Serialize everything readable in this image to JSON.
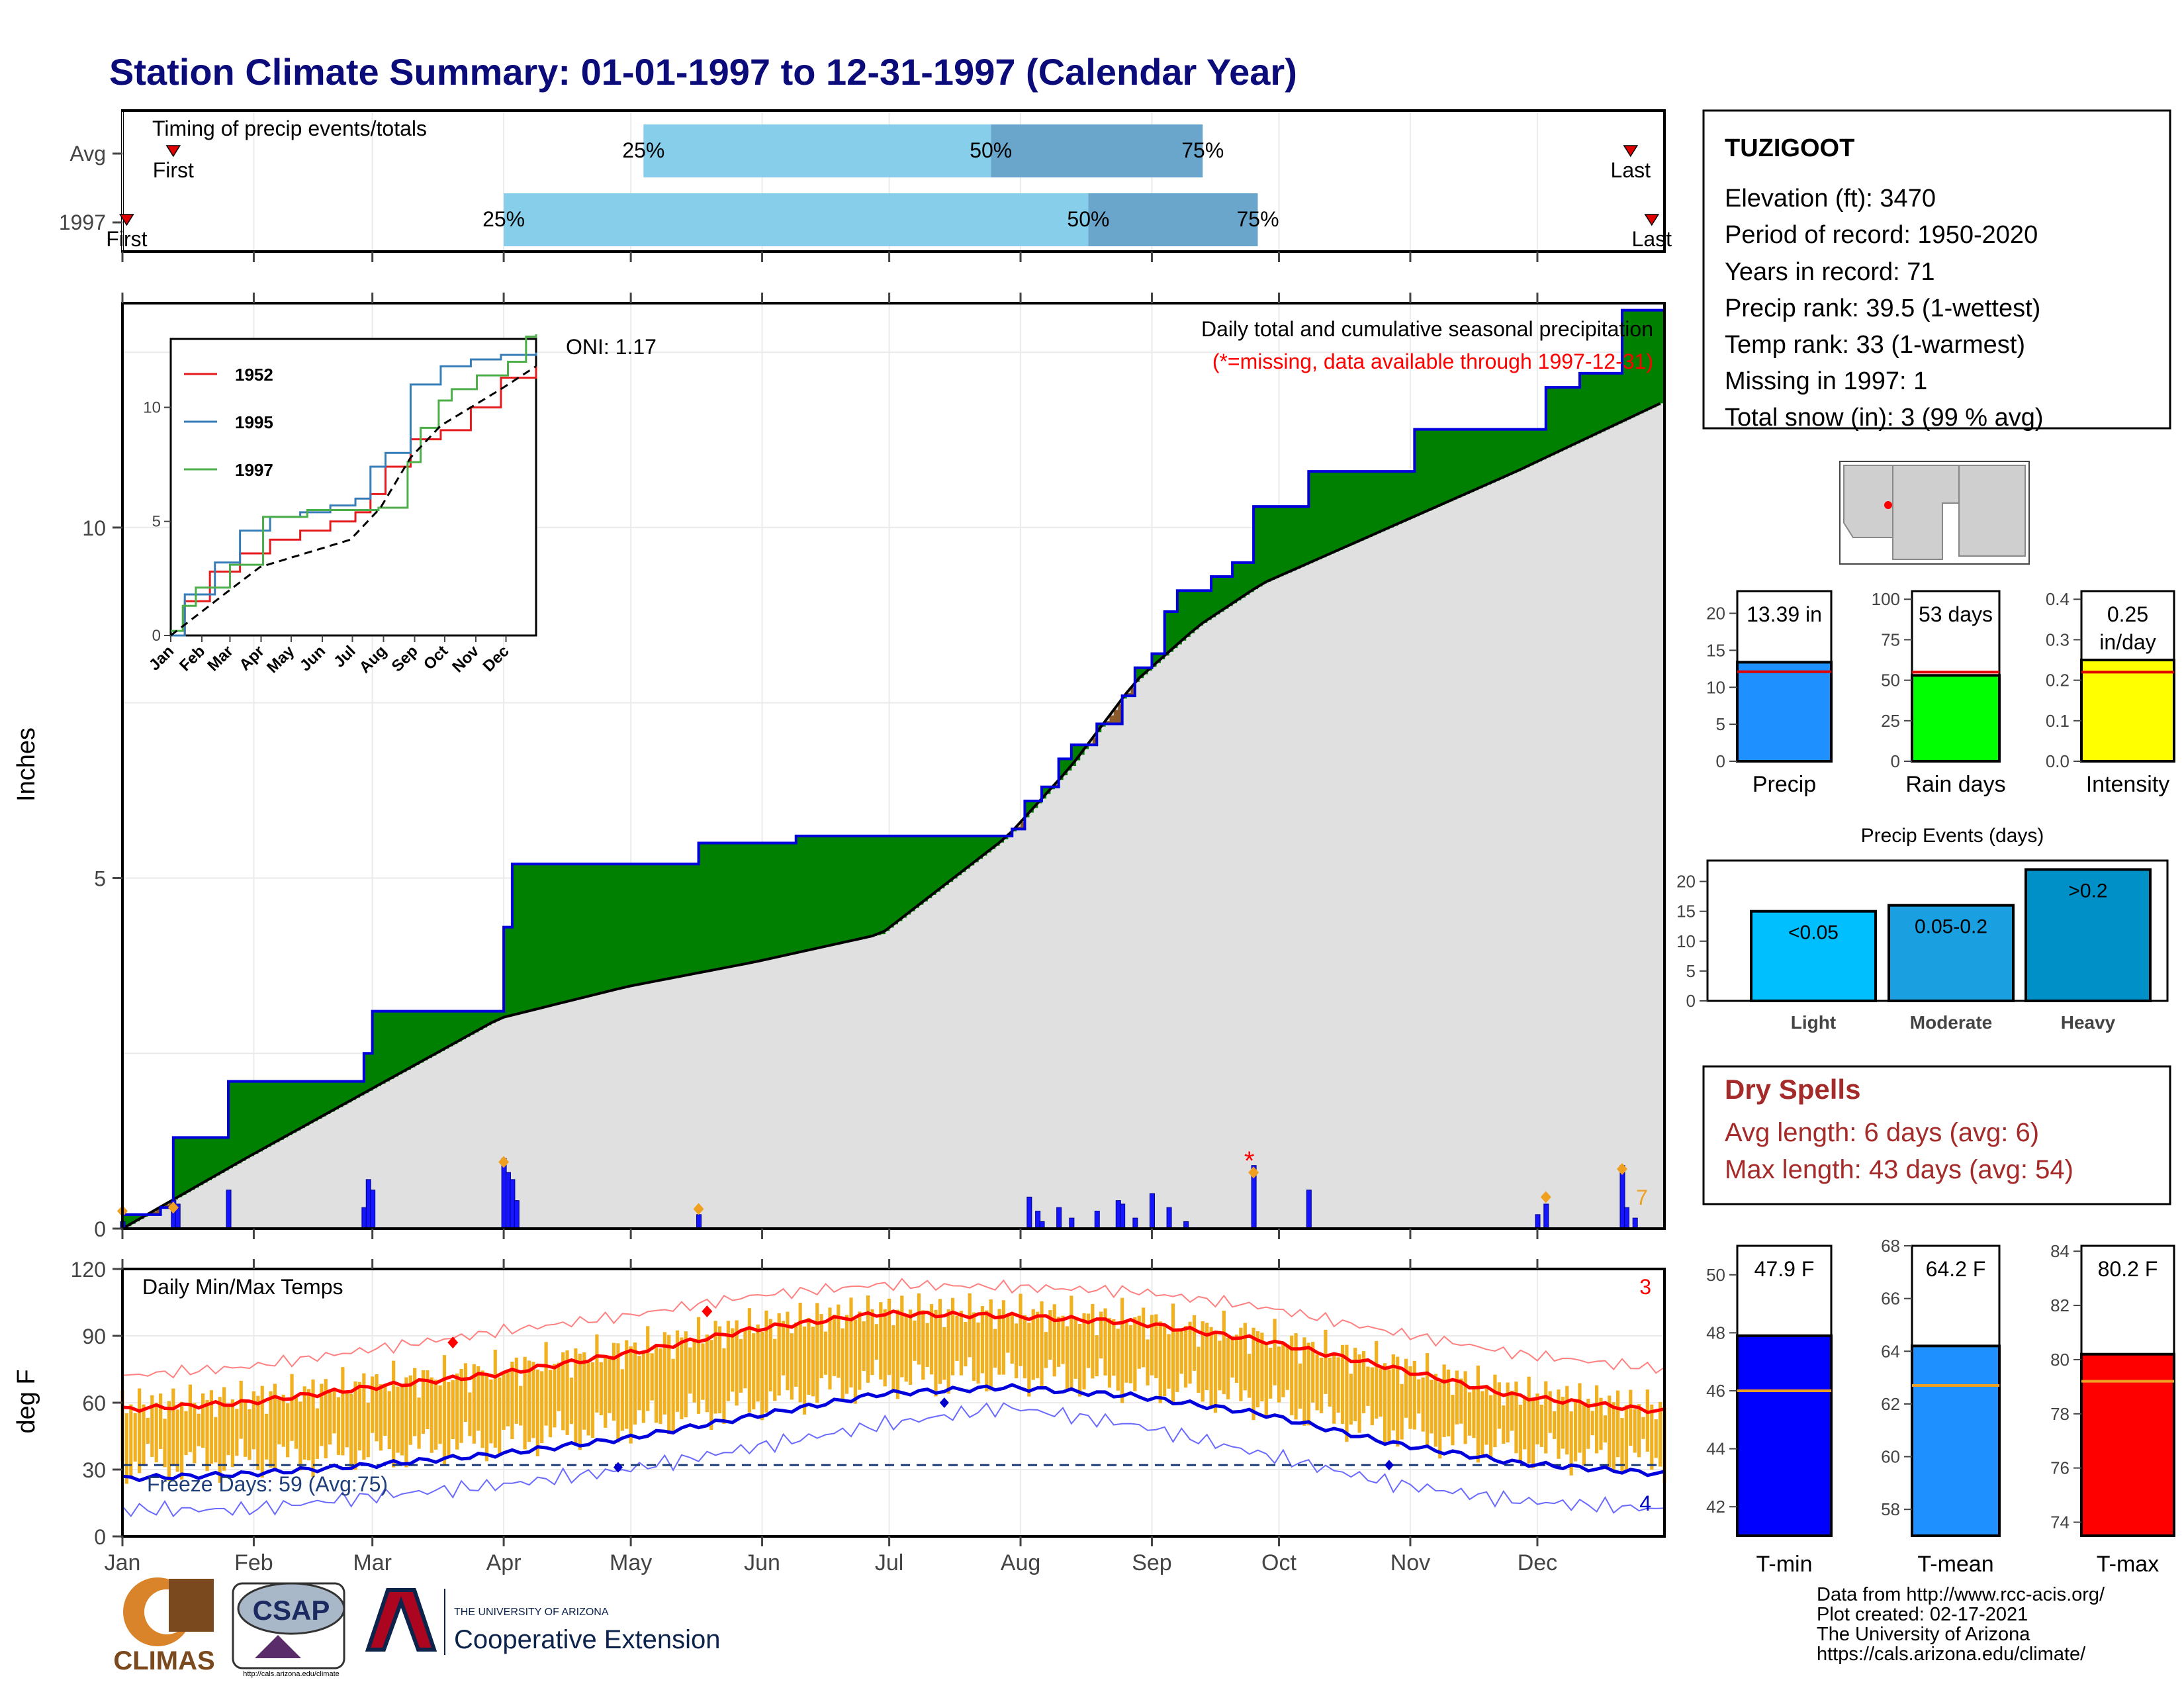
{
  "title": "Station Climate Summary: 01-01-1997 to 12-31-1997 (Calendar Year)",
  "months": [
    "Jan",
    "Feb",
    "Mar",
    "Apr",
    "May",
    "Jun",
    "Jul",
    "Aug",
    "Sep",
    "Oct",
    "Nov",
    "Dec"
  ],
  "colors": {
    "title": "#0b0b7a",
    "green": "#008000",
    "brown": "#8b5a2b",
    "blue": "#0000ff",
    "gold": "#f0b020",
    "red": "#ff0000",
    "lightblue": "#87ceeb",
    "midblue": "#6aa5cc",
    "grey": "#e0e0e0",
    "drySpells": "#a52a2a"
  },
  "timing_panel": {
    "label": "Timing of precip events/totals",
    "rows": [
      {
        "name": "Avg",
        "first_label": "First",
        "last_label": "Last",
        "first_doy": 13,
        "last_doy": 357,
        "p25_doy": 124,
        "p50_doy": 206,
        "p75_doy": 256,
        "p25_label": "25%",
        "p50_label": "50%",
        "p75_label": "75%"
      },
      {
        "name": "1997",
        "first_label": "First",
        "last_label": "Last",
        "first_doy": 2,
        "last_doy": 362,
        "p25_doy": 91,
        "p50_doy": 229,
        "p75_doy": 269,
        "p25_label": "25%",
        "p50_label": "50%",
        "p75_label": "75%"
      }
    ]
  },
  "station": {
    "name": "TUZIGOOT",
    "lines": [
      "Elevation (ft): 3470",
      "Period of record: 1950-2020",
      "Years in record: 71",
      "Precip rank: 39.5 (1-wettest)",
      "Temp rank: 33 (1-warmest)",
      "Missing in 1997: 1",
      "Total snow (in): 3 (99 % avg)"
    ]
  },
  "chart_data": [
    {
      "type": "area",
      "ylabel": "Inches",
      "ylim": [
        0,
        13.2
      ],
      "yticks": [
        0,
        5,
        10
      ],
      "annotation_title": "Daily total and cumulative seasonal precipitation",
      "annotation_missing": "(*=missing, data available through 1997-12-31)",
      "oni": "ONI: 1.17",
      "end_count": "7",
      "cumulative_1997_steps": [
        [
          1,
          0.2
        ],
        [
          10,
          0.3
        ],
        [
          13,
          1.3
        ],
        [
          26,
          2.1
        ],
        [
          58,
          2.5
        ],
        [
          60,
          3.1
        ],
        [
          91,
          4.3
        ],
        [
          93,
          5.2
        ],
        [
          137,
          5.5
        ],
        [
          160,
          5.6
        ],
        [
          208,
          5.6
        ],
        [
          211,
          5.7
        ],
        [
          214,
          6.1
        ],
        [
          218,
          6.3
        ],
        [
          222,
          6.7
        ],
        [
          225,
          6.9
        ],
        [
          231,
          7.2
        ],
        [
          237,
          7.6
        ],
        [
          240,
          8.0
        ],
        [
          244,
          8.2
        ],
        [
          247,
          8.8
        ],
        [
          250,
          9.1
        ],
        [
          258,
          9.3
        ],
        [
          263,
          9.5
        ],
        [
          268,
          10.3
        ],
        [
          281,
          10.8
        ],
        [
          306,
          11.4
        ],
        [
          337,
          12.0
        ],
        [
          345,
          12.2
        ],
        [
          355,
          13.1
        ],
        [
          365,
          13.2
        ]
      ],
      "average_cumulative": [
        [
          1,
          0
        ],
        [
          30,
          1.0
        ],
        [
          60,
          2.0
        ],
        [
          90,
          3.0
        ],
        [
          120,
          3.45
        ],
        [
          150,
          3.8
        ],
        [
          180,
          4.2
        ],
        [
          195,
          4.9
        ],
        [
          210,
          5.6
        ],
        [
          225,
          6.6
        ],
        [
          240,
          7.8
        ],
        [
          255,
          8.6
        ],
        [
          270,
          9.2
        ],
        [
          300,
          10.0
        ],
        [
          330,
          10.8
        ],
        [
          365,
          11.8
        ]
      ],
      "daily_precip": [
        [
          1,
          0.1
        ],
        [
          13,
          0.4
        ],
        [
          14,
          0.35
        ],
        [
          26,
          0.55
        ],
        [
          58,
          0.3
        ],
        [
          59,
          0.7
        ],
        [
          60,
          0.55
        ],
        [
          91,
          1.0
        ],
        [
          92,
          0.8
        ],
        [
          93,
          0.7
        ],
        [
          94,
          0.4
        ],
        [
          137,
          0.2
        ],
        [
          215,
          0.45
        ],
        [
          217,
          0.25
        ],
        [
          218,
          0.1
        ],
        [
          222,
          0.3
        ],
        [
          225,
          0.15
        ],
        [
          231,
          0.25
        ],
        [
          236,
          0.4
        ],
        [
          237,
          0.35
        ],
        [
          240,
          0.15
        ],
        [
          244,
          0.5
        ],
        [
          248,
          0.3
        ],
        [
          252,
          0.1
        ],
        [
          268,
          0.9
        ],
        [
          281,
          0.55
        ],
        [
          335,
          0.2
        ],
        [
          337,
          0.35
        ],
        [
          355,
          0.9
        ],
        [
          356,
          0.3
        ],
        [
          358,
          0.15
        ]
      ]
    },
    {
      "type": "line",
      "title": "Daily Min/Max Temps",
      "ylabel": "deg F",
      "ylim": [
        0,
        120
      ],
      "yticks": [
        0,
        30,
        60,
        90,
        120
      ],
      "freeze_label": "Freeze Days: 59 (Avg:75)",
      "freeze_line": 32,
      "top_right_count": "3",
      "bottom_right_count": "4",
      "avg_max_curve": [
        [
          1,
          57
        ],
        [
          30,
          60
        ],
        [
          60,
          67
        ],
        [
          90,
          73
        ],
        [
          120,
          82
        ],
        [
          150,
          93
        ],
        [
          180,
          100
        ],
        [
          210,
          99
        ],
        [
          240,
          96
        ],
        [
          270,
          88
        ],
        [
          300,
          76
        ],
        [
          330,
          63
        ],
        [
          365,
          56
        ]
      ],
      "avg_min_curve": [
        [
          1,
          26
        ],
        [
          30,
          28
        ],
        [
          60,
          32
        ],
        [
          90,
          37
        ],
        [
          120,
          44
        ],
        [
          150,
          54
        ],
        [
          180,
          64
        ],
        [
          210,
          67
        ],
        [
          240,
          63
        ],
        [
          270,
          55
        ],
        [
          300,
          42
        ],
        [
          330,
          33
        ],
        [
          365,
          28
        ]
      ],
      "record_max_curve": [
        [
          1,
          72
        ],
        [
          30,
          76
        ],
        [
          60,
          84
        ],
        [
          90,
          92
        ],
        [
          120,
          99
        ],
        [
          150,
          108
        ],
        [
          180,
          113
        ],
        [
          210,
          112
        ],
        [
          240,
          110
        ],
        [
          270,
          103
        ],
        [
          300,
          92
        ],
        [
          330,
          82
        ],
        [
          365,
          75
        ]
      ],
      "record_min_curve": [
        [
          1,
          12
        ],
        [
          30,
          12
        ],
        [
          60,
          18
        ],
        [
          90,
          23
        ],
        [
          120,
          30
        ],
        [
          150,
          40
        ],
        [
          180,
          50
        ],
        [
          210,
          58
        ],
        [
          240,
          50
        ],
        [
          270,
          37
        ],
        [
          300,
          24
        ],
        [
          330,
          16
        ],
        [
          365,
          12
        ]
      ]
    },
    {
      "type": "bar",
      "title": "Precip",
      "value_label": "13.39 in",
      "value": 13.39,
      "avg": 12.1,
      "ylim": [
        0,
        23
      ],
      "yticks": [
        0,
        5,
        10,
        15,
        20
      ]
    },
    {
      "type": "bar",
      "title": "Rain days",
      "value_label": "53 days",
      "value": 53,
      "avg": 55,
      "ylim": [
        0,
        105
      ],
      "yticks": [
        0,
        25,
        50,
        75,
        100
      ]
    },
    {
      "type": "bar",
      "title": "Intensity",
      "value_label": "0.25 in/day",
      "value_label_lines": [
        "0.25",
        "in/day"
      ],
      "value": 0.25,
      "avg": 0.22,
      "ylim": [
        0,
        0.42
      ],
      "yticks": [
        0.0,
        0.1,
        0.2,
        0.3,
        0.4
      ]
    },
    {
      "type": "bar",
      "title": "Precip Events (days)",
      "categories": [
        "Light",
        "Moderate",
        "Heavy"
      ],
      "bar_labels": [
        "<0.05",
        "0.05-0.2",
        ">0.2"
      ],
      "values": [
        15,
        16,
        22
      ],
      "ylim": [
        0,
        23.5
      ],
      "yticks": [
        0,
        5,
        10,
        15,
        20
      ]
    },
    {
      "type": "bar",
      "title": "T-min",
      "value_label": "47.9 F",
      "value": 47.9,
      "avg": 46.0,
      "ylim": [
        41,
        51
      ],
      "yticks": [
        42,
        44,
        46,
        48,
        50
      ]
    },
    {
      "type": "bar",
      "title": "T-mean",
      "value_label": "64.2 F",
      "value": 64.2,
      "avg": 62.7,
      "ylim": [
        57,
        68
      ],
      "yticks": [
        58,
        60,
        62,
        64,
        66,
        68
      ]
    },
    {
      "type": "bar",
      "title": "T-max",
      "value_label": "80.2 F",
      "value": 80.2,
      "avg": 79.2,
      "ylim": [
        73.5,
        84.2
      ],
      "yticks": [
        74,
        76,
        78,
        80,
        82,
        84
      ]
    },
    {
      "type": "line",
      "inset": true,
      "yticks": [
        0,
        5,
        10
      ],
      "ylim": [
        0,
        13
      ],
      "series": [
        {
          "name": "1952",
          "color": "#e41a1c",
          "values": [
            [
              1,
              0
            ],
            [
              15,
              1.5
            ],
            [
              40,
              2.8
            ],
            [
              70,
              3.6
            ],
            [
              100,
              4.2
            ],
            [
              130,
              4.6
            ],
            [
              160,
              5.0
            ],
            [
              185,
              5.4
            ],
            [
              200,
              6.2
            ],
            [
              215,
              7.4
            ],
            [
              240,
              8.6
            ],
            [
              270,
              9.0
            ],
            [
              300,
              10.0
            ],
            [
              330,
              11.3
            ],
            [
              365,
              11.8
            ]
          ]
        },
        {
          "name": "1995",
          "color": "#377eb8",
          "values": [
            [
              1,
              0
            ],
            [
              15,
              1.8
            ],
            [
              45,
              3.2
            ],
            [
              70,
              4.6
            ],
            [
              100,
              5.2
            ],
            [
              130,
              5.4
            ],
            [
              160,
              5.7
            ],
            [
              185,
              6.0
            ],
            [
              200,
              7.4
            ],
            [
              215,
              8.0
            ],
            [
              240,
              11.0
            ],
            [
              270,
              11.8
            ],
            [
              300,
              12.1
            ],
            [
              330,
              12.3
            ],
            [
              365,
              12.4
            ]
          ]
        },
        {
          "name": "1997",
          "color": "#4daf4a",
          "values": [
            [
              1,
              0.2
            ],
            [
              13,
              1.3
            ],
            [
              26,
              2.1
            ],
            [
              60,
              3.1
            ],
            [
              93,
              5.2
            ],
            [
              137,
              5.5
            ],
            [
              208,
              5.6
            ],
            [
              237,
              7.6
            ],
            [
              250,
              9.1
            ],
            [
              268,
              10.3
            ],
            [
              281,
              10.8
            ],
            [
              306,
              11.4
            ],
            [
              337,
              12.0
            ],
            [
              355,
              13.1
            ],
            [
              365,
              13.2
            ]
          ]
        }
      ],
      "average": [
        [
          1,
          0
        ],
        [
          60,
          2
        ],
        [
          90,
          3
        ],
        [
          150,
          3.8
        ],
        [
          180,
          4.2
        ],
        [
          210,
          5.6
        ],
        [
          240,
          7.8
        ],
        [
          270,
          9.2
        ],
        [
          300,
          10
        ],
        [
          330,
          10.8
        ],
        [
          365,
          11.8
        ]
      ]
    }
  ],
  "dry_spells": {
    "title": "Dry Spells",
    "avg_line": "Avg length: 6 days (avg: 6)",
    "max_line": "Max length: 43 days (avg: 54)"
  },
  "footer": {
    "lines": [
      "Data from http://www.rcc-acis.org/",
      "Plot created: 02-17-2021",
      "The University of Arizona",
      "https://cals.arizona.edu/climate/"
    ]
  },
  "logos": {
    "climas": "CLIMAS",
    "csap": "CSAP",
    "csap_url": "http://cals.arizona.edu/climate",
    "ua_small": "THE UNIVERSITY OF ARIZONA",
    "ua_big": "Cooperative Extension"
  }
}
